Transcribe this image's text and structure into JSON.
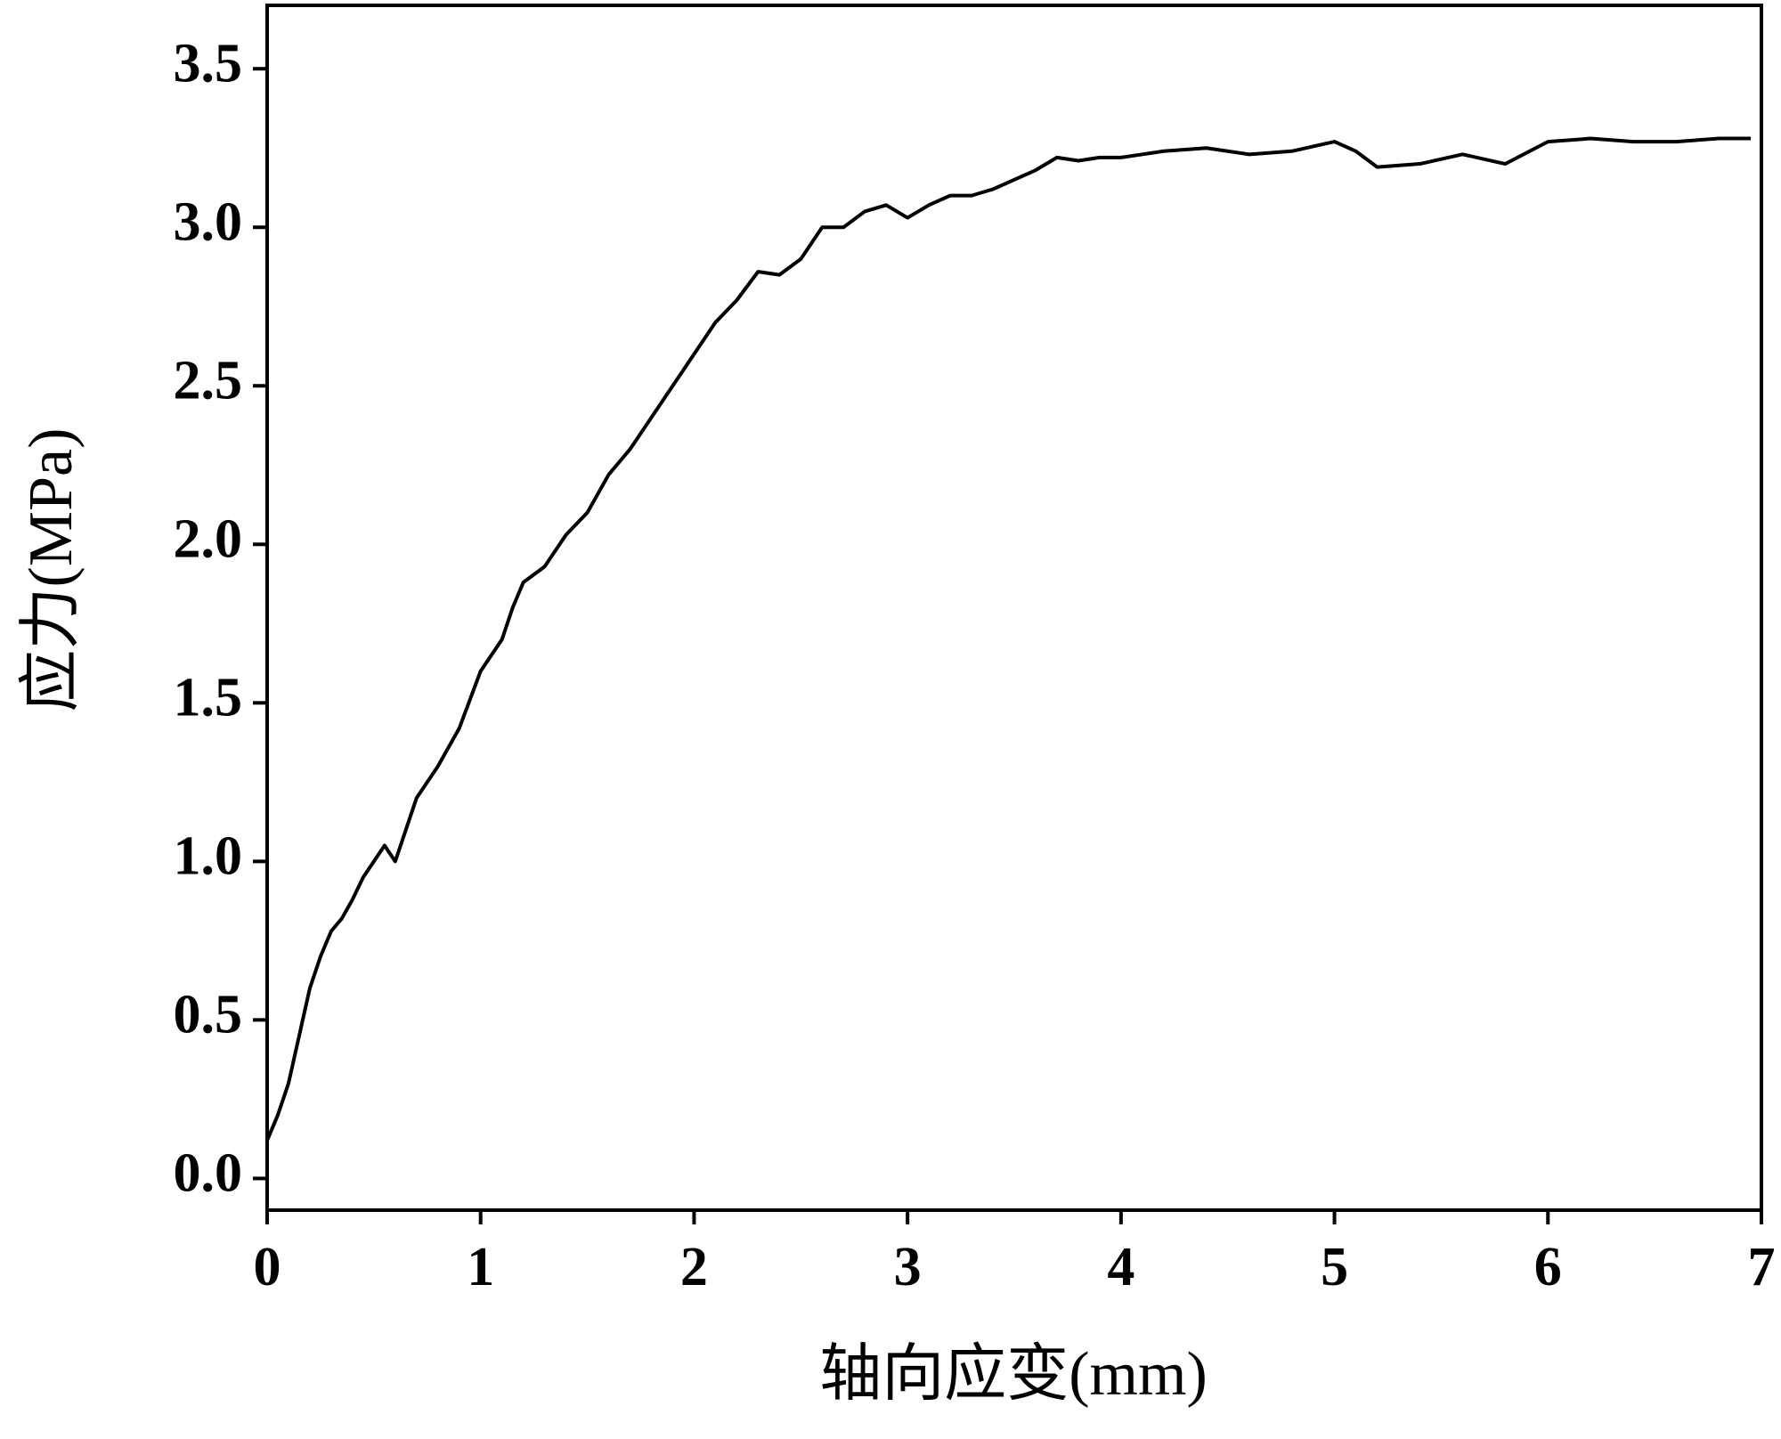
{
  "chart_data": {
    "type": "line",
    "x_label": "轴向应变(mm)",
    "y_label": "应力(MPa)",
    "x": [
      0,
      0.05,
      0.1,
      0.15,
      0.2,
      0.25,
      0.3,
      0.35,
      0.4,
      0.45,
      0.5,
      0.55,
      0.6,
      0.65,
      0.7,
      0.8,
      0.9,
      1.0,
      1.1,
      1.15,
      1.2,
      1.3,
      1.4,
      1.5,
      1.6,
      1.7,
      1.8,
      1.9,
      2.0,
      2.1,
      2.2,
      2.3,
      2.4,
      2.5,
      2.6,
      2.7,
      2.8,
      2.9,
      3.0,
      3.1,
      3.2,
      3.3,
      3.4,
      3.5,
      3.6,
      3.7,
      3.8,
      3.9,
      4.0,
      4.2,
      4.4,
      4.6,
      4.8,
      5.0,
      5.1,
      5.2,
      5.4,
      5.6,
      5.8,
      6.0,
      6.2,
      6.4,
      6.6,
      6.8,
      6.95
    ],
    "series": [
      {
        "color": "#000000",
        "values": [
          0.12,
          0.2,
          0.3,
          0.45,
          0.6,
          0.7,
          0.78,
          0.82,
          0.88,
          0.95,
          1.0,
          1.05,
          1.0,
          1.1,
          1.2,
          1.3,
          1.42,
          1.6,
          1.7,
          1.8,
          1.88,
          1.93,
          2.03,
          2.1,
          2.22,
          2.3,
          2.4,
          2.5,
          2.6,
          2.7,
          2.77,
          2.86,
          2.85,
          2.9,
          3.0,
          3.0,
          3.05,
          3.07,
          3.03,
          3.07,
          3.1,
          3.1,
          3.12,
          3.15,
          3.18,
          3.22,
          3.21,
          3.22,
          3.22,
          3.24,
          3.25,
          3.23,
          3.24,
          3.27,
          3.24,
          3.19,
          3.2,
          3.23,
          3.2,
          3.27,
          3.28,
          3.27,
          3.27,
          3.28,
          3.28
        ]
      }
    ],
    "xlim": [
      0,
      7
    ],
    "xticks": [
      0,
      1,
      2,
      3,
      4,
      5,
      6,
      7
    ],
    "ylim": [
      -0.1,
      3.7
    ],
    "yticks": [
      {
        "value": 0,
        "label": "0.0"
      },
      0.5,
      {
        "value": 1,
        "label": "1.0"
      },
      1.5,
      {
        "value": 2,
        "label": "2.0"
      },
      2.5,
      {
        "value": 3,
        "label": "3.0"
      },
      3.5
    ]
  }
}
